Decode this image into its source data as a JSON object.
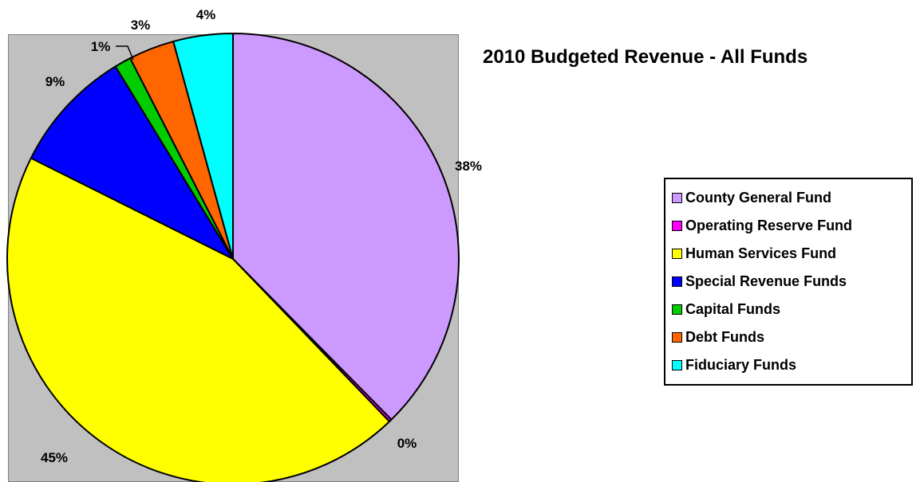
{
  "chart_data": {
    "type": "pie",
    "title": "2010 Budgeted Revenue - All Funds",
    "legend_position": "right",
    "slices": [
      {
        "label": "County General Fund",
        "value": 38,
        "display": "38%",
        "color": "#cc99ff"
      },
      {
        "label": "Operating Reserve Fund",
        "value": 0.2,
        "display": "0%",
        "color": "#ff00ff"
      },
      {
        "label": "Human Services Fund",
        "value": 45,
        "display": "45%",
        "color": "#ffff00"
      },
      {
        "label": "Special Revenue Funds",
        "value": 9,
        "display": "9%",
        "color": "#0000ff"
      },
      {
        "label": "Capital Funds",
        "value": 1.2,
        "display": "1%",
        "color": "#00cc00"
      },
      {
        "label": "Debt Funds",
        "value": 3.3,
        "display": "3%",
        "color": "#ff6600"
      },
      {
        "label": "Fiduciary Funds",
        "value": 4.3,
        "display": "4%",
        "color": "#00ffff"
      }
    ]
  }
}
